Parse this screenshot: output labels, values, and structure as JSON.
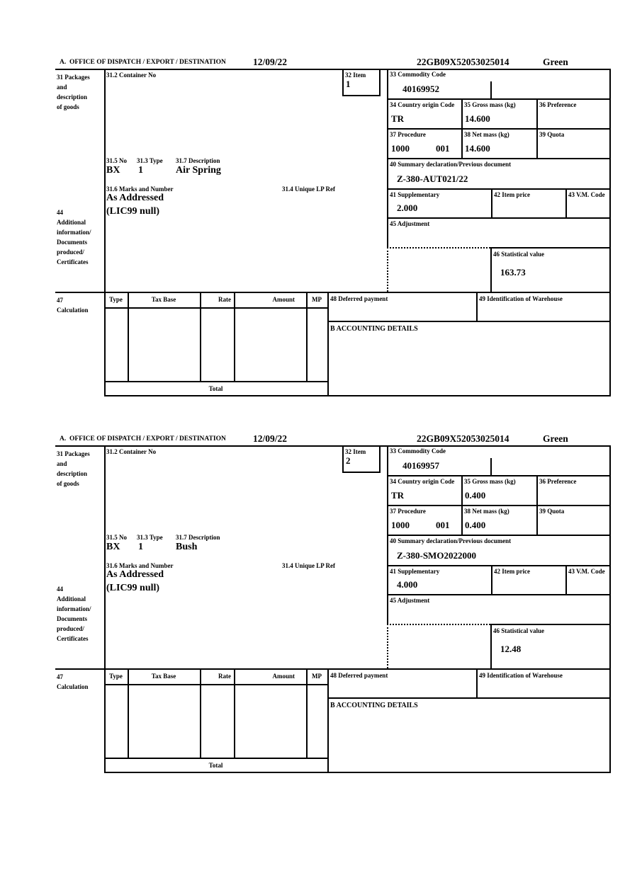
{
  "header": {
    "office_label": "A.  OFFICE OF DISPATCH / EXPORT / DESTINATION",
    "date": "12/09/22",
    "reference": "22GB09X52053025014",
    "status": "Green"
  },
  "labels": {
    "packages": "31 Packages\nand\ndescription\nof goods",
    "container_no": "31.2 Container No",
    "no": "31.5 No",
    "type": "31.3 Type",
    "description": "31.7 Description",
    "marks_and_number": "31.6 Marks and Number",
    "unique_lp_ref": "31.4 Unique LP Ref",
    "item": "32 Item",
    "commodity_code": "33 Commodity Code",
    "country_origin": "34 Country origin Code",
    "gross_mass": "35 Gross mass (kg)",
    "preference": "36 Preference",
    "procedure": "37 Procedure",
    "net_mass": "38 Net mass (kg)",
    "quota": "39 Quota",
    "summary_declaration": "40 Summary declaration/Previous document",
    "supplementary": "41 Supplementary",
    "item_price": "42 Item price",
    "vm_code": "43 V.M. Code",
    "additional": "44\nAdditional\ninformation/\nDocuments\nproduced/\nCertificates",
    "adjustment": "45 Adjustment",
    "statistical_value": "46 Statistical value",
    "calculation": "47\nCalculation",
    "col_type": "Type",
    "col_tax_base": "Tax Base",
    "col_rate": "Rate",
    "col_amount": "Amount",
    "col_mp": "MP",
    "deferred_payment": "48 Deferred payment",
    "warehouse": "49 Identification of Warehouse",
    "accounting": "B ACCOUNTING DETAILS",
    "total": "Total"
  },
  "items": [
    {
      "item_no": "1",
      "container_no": "",
      "commodity_code": "40169952",
      "country_origin": "TR",
      "gross_mass": "14.600",
      "preference": "",
      "procedure": "1000",
      "procedure_ext": "001",
      "net_mass": "14.600",
      "quota": "",
      "summary_declaration": "Z-380-AUT021/22",
      "supplementary": "2.000",
      "item_price": "",
      "vm_code": "",
      "adjustment": "",
      "statistical_value": "163.73",
      "package_code": "BX",
      "package_count": "1",
      "goods_description": "Air Spring",
      "marks": "As Addressed",
      "unique_lp_ref": "",
      "additional_info": "(LIC99 null)"
    },
    {
      "item_no": "2",
      "container_no": "",
      "commodity_code": "40169957",
      "country_origin": "TR",
      "gross_mass": "0.400",
      "preference": "",
      "procedure": "1000",
      "procedure_ext": "001",
      "net_mass": "0.400",
      "quota": "",
      "summary_declaration": "Z-380-SMO2022000",
      "supplementary": "4.000",
      "item_price": "",
      "vm_code": "",
      "adjustment": "",
      "statistical_value": "12.48",
      "package_code": "BX",
      "package_count": "1",
      "goods_description": "Bush",
      "marks": "As Addressed",
      "unique_lp_ref": "",
      "additional_info": "(LIC99 null)"
    }
  ]
}
